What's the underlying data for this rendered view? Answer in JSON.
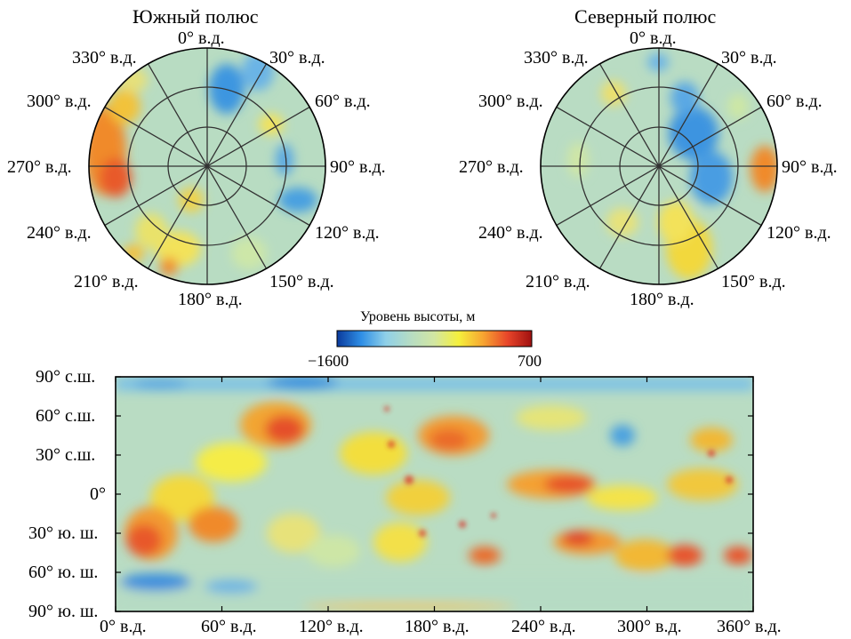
{
  "south_pole": {
    "title": "Южный полюс",
    "labels": [
      "0° в.д.",
      "30° в.д.",
      "60° в.д.",
      "90° в.д.",
      "120° в.д.",
      "150° в.д.",
      "180° в.д.",
      "210° в.д.",
      "240° в.д.",
      "270° в.д.",
      "300° в.д.",
      "330° в.д."
    ]
  },
  "north_pole": {
    "title": "Северный полюс",
    "labels": [
      "0° в.д.",
      "30° в.д.",
      "60° в.д.",
      "90° в.д.",
      "120° в.д.",
      "150° в.д.",
      "180° в.д.",
      "210° в.д.",
      "240° в.д.",
      "270° в.д.",
      "300° в.д.",
      "330° в.д."
    ]
  },
  "colorbar": {
    "title": "Уровень высоты, м",
    "min_label": "−1600",
    "max_label": "700",
    "colors": [
      "#0a3a9c",
      "#2f8fe6",
      "#8fd0e8",
      "#b5dcc4",
      "#d2e6a2",
      "#f5f03c",
      "#f7a531",
      "#e8462a",
      "#a01010"
    ]
  },
  "map": {
    "y_labels": [
      "90° с.ш.",
      "60° с.ш.",
      "30° с.ш.",
      "0°",
      "30° ю. ш.",
      "60° ю. ш.",
      "90° ю. ш."
    ],
    "x_labels": [
      "0° в.д.",
      "60° в.д.",
      "120° в.д.",
      "180° в.д.",
      "240° в.д.",
      "300° в.д.",
      "360° в.д."
    ]
  }
}
